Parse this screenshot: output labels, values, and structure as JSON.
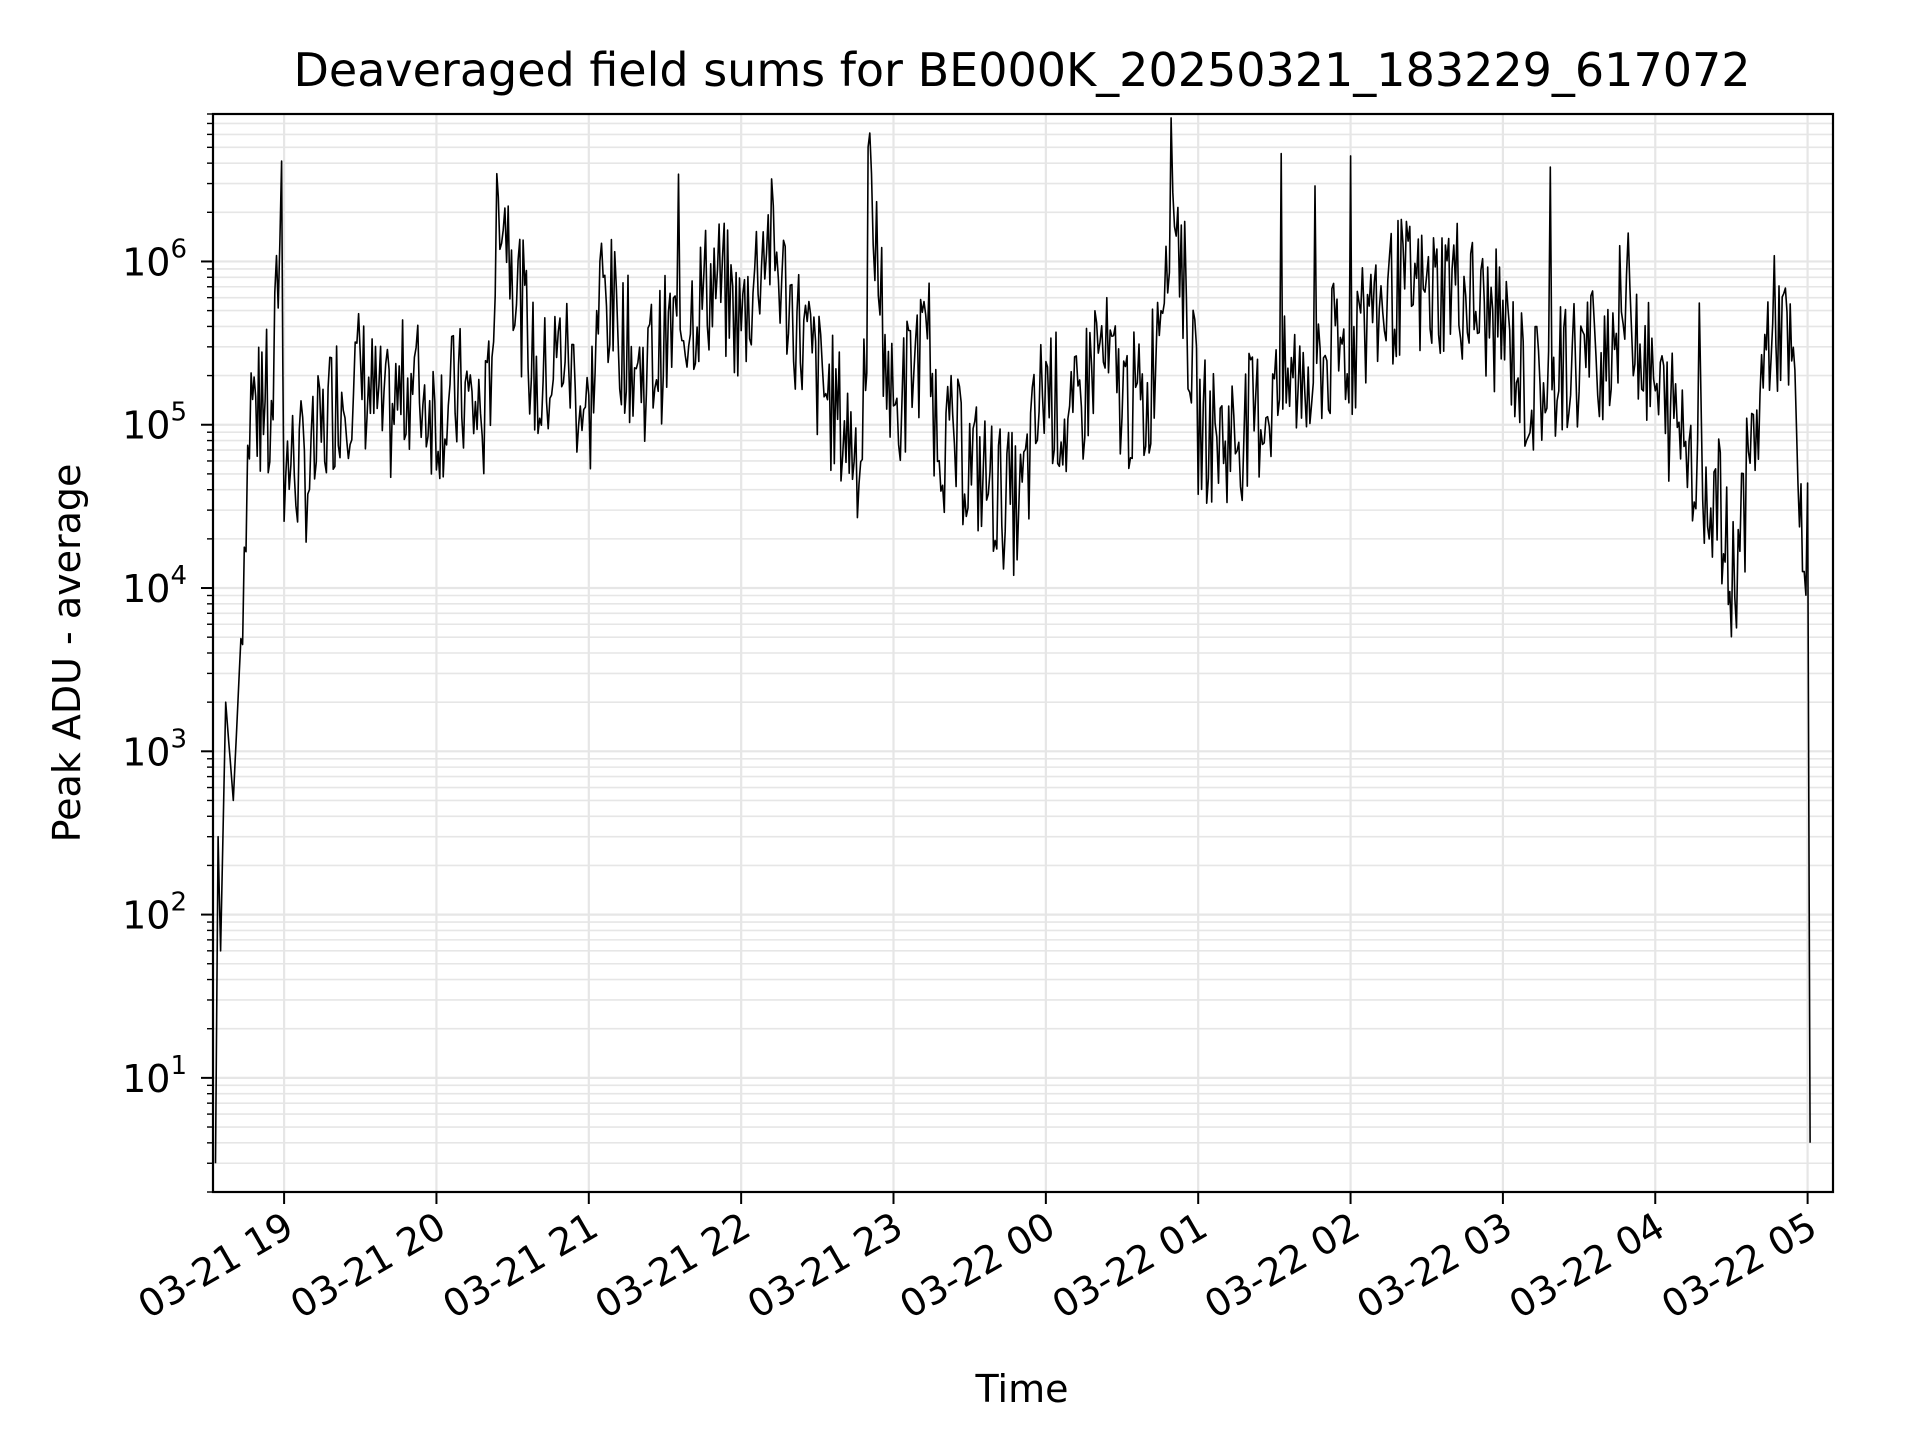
{
  "chart_data": {
    "type": "line",
    "title": "Deaveraged field sums for BE000K_20250321_183229_617072",
    "xlabel": "Time",
    "ylabel": "Peak ADU - average",
    "yscale": "log",
    "xlim": [
      "2025-03-21 18:32",
      "2025-03-22 05:10"
    ],
    "ylim": [
      2,
      8000000
    ],
    "grid": true,
    "x_tick_labels": [
      "03-21 19",
      "03-21 20",
      "03-21 21",
      "03-21 22",
      "03-21 23",
      "03-22 00",
      "03-22 01",
      "03-22 02",
      "03-22 03",
      "03-22 04",
      "03-22 05"
    ],
    "y_ticks": [
      {
        "base": "10",
        "exp": "1"
      },
      {
        "base": "10",
        "exp": "2"
      },
      {
        "base": "10",
        "exp": "3"
      },
      {
        "base": "10",
        "exp": "4"
      },
      {
        "base": "10",
        "exp": "5"
      },
      {
        "base": "10",
        "exp": "6"
      }
    ],
    "series": [
      {
        "color": "#000000",
        "x": [
          "2025-03-21 18:33",
          "2025-03-21 18:34",
          "2025-03-21 18:35",
          "2025-03-21 18:37",
          "2025-03-21 18:40",
          "2025-03-21 18:43",
          "2025-03-21 18:45",
          "2025-03-21 18:47",
          "2025-03-21 18:50",
          "2025-03-21 18:55",
          "2025-03-21 18:59",
          "2025-03-21 19:00",
          "2025-03-21 19:10",
          "2025-03-21 19:20",
          "2025-03-21 19:30",
          "2025-03-21 19:40",
          "2025-03-21 19:50",
          "2025-03-21 20:00",
          "2025-03-21 20:10",
          "2025-03-21 20:20",
          "2025-03-21 20:25",
          "2025-03-21 20:40",
          "2025-03-21 20:50",
          "2025-03-21 21:00",
          "2025-03-21 21:05",
          "2025-03-21 21:20",
          "2025-03-21 21:30",
          "2025-03-21 21:40",
          "2025-03-21 21:50",
          "2025-03-21 22:00",
          "2025-03-21 22:10",
          "2025-03-21 22:20",
          "2025-03-21 22:30",
          "2025-03-21 22:40",
          "2025-03-21 22:49",
          "2025-03-21 22:50",
          "2025-03-21 23:00",
          "2025-03-21 23:10",
          "2025-03-21 23:20",
          "2025-03-21 23:30",
          "2025-03-21 23:40",
          "2025-03-21 23:50",
          "2025-03-22 00:00",
          "2025-03-22 00:10",
          "2025-03-22 00:20",
          "2025-03-22 00:30",
          "2025-03-22 00:40",
          "2025-03-22 00:50",
          "2025-03-22 01:00",
          "2025-03-22 01:10",
          "2025-03-22 01:20",
          "2025-03-22 01:30",
          "2025-03-22 01:40",
          "2025-03-22 01:50",
          "2025-03-22 02:00",
          "2025-03-22 02:10",
          "2025-03-22 02:20",
          "2025-03-22 02:30",
          "2025-03-22 02:40",
          "2025-03-22 02:50",
          "2025-03-22 03:00",
          "2025-03-22 03:10",
          "2025-03-22 03:20",
          "2025-03-22 03:30",
          "2025-03-22 03:40",
          "2025-03-22 03:50",
          "2025-03-22 04:00",
          "2025-03-22 04:10",
          "2025-03-22 04:20",
          "2025-03-22 04:25",
          "2025-03-22 04:30",
          "2025-03-22 04:40",
          "2025-03-22 04:45",
          "2025-03-22 04:50",
          "2025-03-22 04:55",
          "2025-03-22 04:58",
          "2025-03-22 05:00",
          "2025-03-22 05:01"
        ],
        "y": [
          3,
          300,
          60,
          2000,
          500,
          5000,
          40000,
          150000,
          120000,
          80000,
          3000000,
          60000,
          50000,
          150000,
          200000,
          100000,
          200000,
          120000,
          150000,
          100000,
          3000000,
          150000,
          300000,
          100000,
          700000,
          200000,
          300000,
          500000,
          800000,
          400000,
          1500000,
          500000,
          200000,
          100000,
          60000,
          3500000,
          100000,
          300000,
          80000,
          60000,
          40000,
          30000,
          200000,
          80000,
          300000,
          150000,
          120000,
          3500000,
          100000,
          80000,
          100000,
          150000,
          200000,
          250000,
          300000,
          500000,
          700000,
          600000,
          800000,
          500000,
          400000,
          150000,
          200000,
          250000,
          300000,
          600000,
          150000,
          100000,
          50000,
          30000,
          10000,
          100000,
          400000,
          400000,
          150000,
          10000,
          30000,
          4
        ]
      }
    ]
  }
}
